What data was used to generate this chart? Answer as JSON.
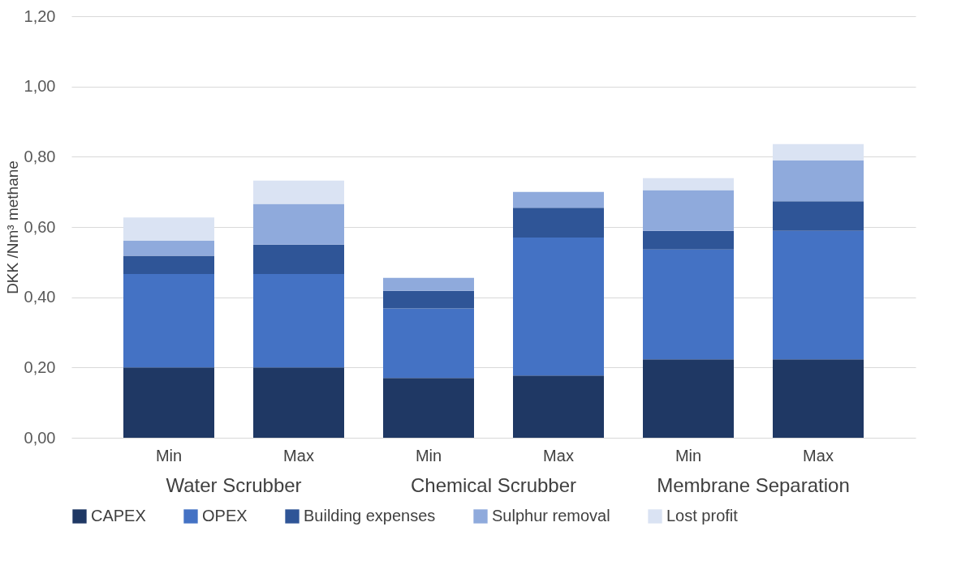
{
  "chart_data": {
    "type": "bar",
    "stacked": true,
    "ylabel": "DKK /Nm³ methane",
    "categories": [
      "Min",
      "Max",
      "Min",
      "Max",
      "Min",
      "Max"
    ],
    "annotations": [
      "Water Scrubber",
      "Chemical Scrubber",
      "Membrane Separation"
    ],
    "series": [
      {
        "name": "CAPEX",
        "color": "#1f3864",
        "values": [
          0.2,
          0.2,
          0.17,
          0.177,
          0.223,
          0.223
        ]
      },
      {
        "name": "OPEX",
        "color": "#4472c4",
        "values": [
          0.266,
          0.266,
          0.198,
          0.393,
          0.313,
          0.366
        ]
      },
      {
        "name": "Building expenses",
        "color": "#2f5597",
        "values": [
          0.052,
          0.084,
          0.05,
          0.085,
          0.053,
          0.084
        ]
      },
      {
        "name": "Sulphur removal",
        "color": "#8faadc",
        "values": [
          0.043,
          0.116,
          0.037,
          0.045,
          0.116,
          0.116
        ]
      },
      {
        "name": "Lost profit",
        "color": "#dae3f3",
        "values": [
          0.066,
          0.066,
          null,
          null,
          0.034,
          0.047
        ]
      }
    ],
    "ylim": [
      0,
      1.2
    ],
    "yticks": [
      {
        "value": 0,
        "label": "0,00"
      },
      {
        "value": 0.2,
        "label": "0,20"
      },
      {
        "value": 0.4,
        "label": "0,40"
      },
      {
        "value": 0.6,
        "label": "0,60"
      },
      {
        "value": 0.8,
        "label": "0,80"
      },
      {
        "value": 1.0,
        "label": "1,00"
      },
      {
        "value": 1.2,
        "label": "1,20"
      }
    ],
    "grid": "y",
    "legend": "bottom"
  }
}
